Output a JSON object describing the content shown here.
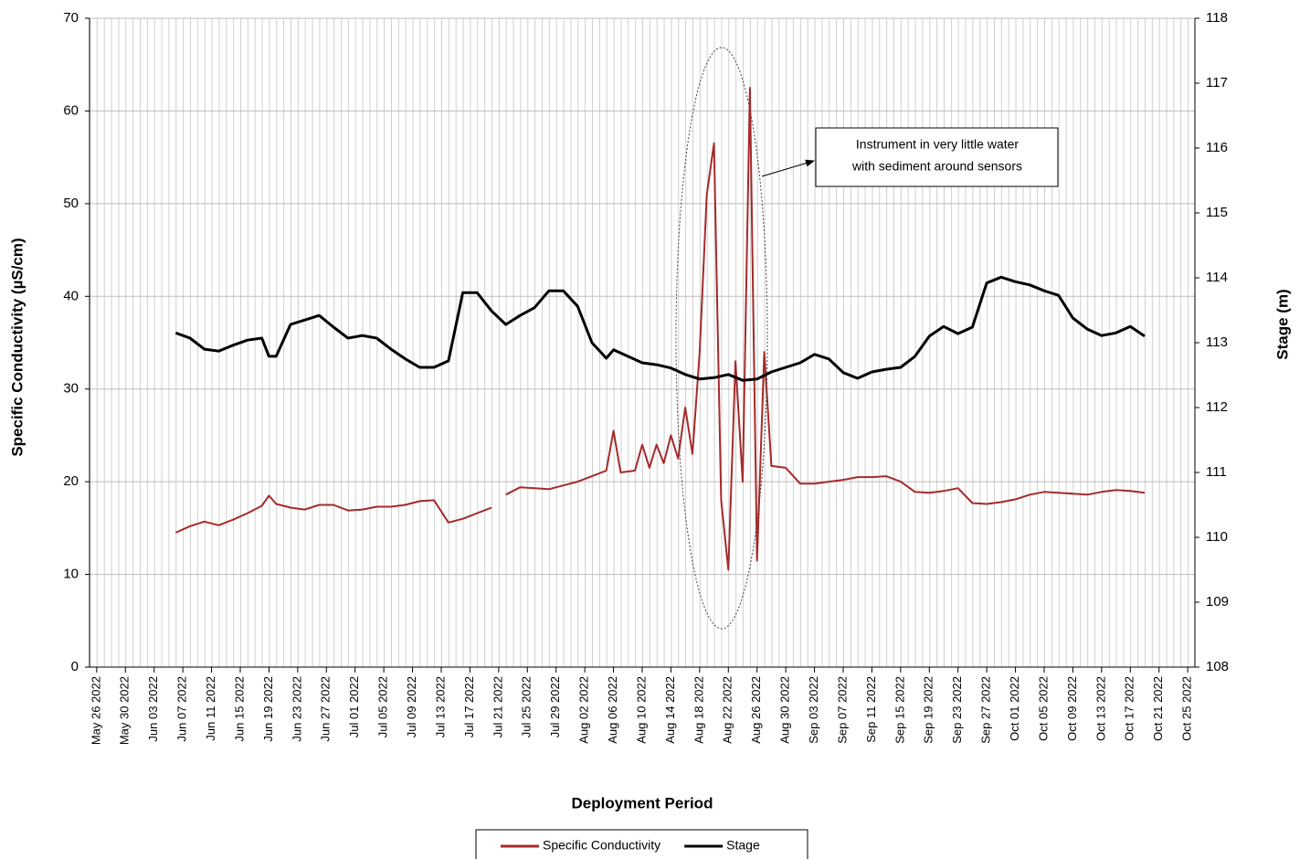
{
  "chart_data": {
    "type": "line",
    "x_label": "Deployment Period",
    "y_label": "Specific Conductivity  (µS/cm)",
    "y2_label": "Stage (m)",
    "xlim": [
      "2022-05-25",
      "2022-10-26"
    ],
    "xticks": [
      {
        "value": "2022-05-26",
        "label": "May 26 2022"
      },
      {
        "value": "2022-05-30",
        "label": "May 30 2022"
      },
      {
        "value": "2022-06-03",
        "label": "Jun 03 2022"
      },
      {
        "value": "2022-06-07",
        "label": "Jun 07 2022"
      },
      {
        "value": "2022-06-11",
        "label": "Jun 11 2022"
      },
      {
        "value": "2022-06-15",
        "label": "Jun 15 2022"
      },
      {
        "value": "2022-06-19",
        "label": "Jun 19 2022"
      },
      {
        "value": "2022-06-23",
        "label": "Jun 23 2022"
      },
      {
        "value": "2022-06-27",
        "label": "Jun 27 2022"
      },
      {
        "value": "2022-07-01",
        "label": "Jul 01 2022"
      },
      {
        "value": "2022-07-05",
        "label": "Jul 05 2022"
      },
      {
        "value": "2022-07-09",
        "label": "Jul 09 2022"
      },
      {
        "value": "2022-07-13",
        "label": "Jul 13 2022"
      },
      {
        "value": "2022-07-17",
        "label": "Jul 17 2022"
      },
      {
        "value": "2022-07-21",
        "label": "Jul 21 2022"
      },
      {
        "value": "2022-07-25",
        "label": "Jul 25 2022"
      },
      {
        "value": "2022-07-29",
        "label": "Jul 29 2022"
      },
      {
        "value": "2022-08-02",
        "label": "Aug 02 2022"
      },
      {
        "value": "2022-08-06",
        "label": "Aug 06 2022"
      },
      {
        "value": "2022-08-10",
        "label": "Aug 10 2022"
      },
      {
        "value": "2022-08-14",
        "label": "Aug 14 2022"
      },
      {
        "value": "2022-08-18",
        "label": "Aug 18 2022"
      },
      {
        "value": "2022-08-22",
        "label": "Aug 22 2022"
      },
      {
        "value": "2022-08-26",
        "label": "Aug 26 2022"
      },
      {
        "value": "2022-08-30",
        "label": "Aug 30 2022"
      },
      {
        "value": "2022-09-03",
        "label": "Sep 03 2022"
      },
      {
        "value": "2022-09-07",
        "label": "Sep 07 2022"
      },
      {
        "value": "2022-09-11",
        "label": "Sep 11 2022"
      },
      {
        "value": "2022-09-15",
        "label": "Sep 15 2022"
      },
      {
        "value": "2022-09-19",
        "label": "Sep 19 2022"
      },
      {
        "value": "2022-09-23",
        "label": "Sep 23 2022"
      },
      {
        "value": "2022-09-27",
        "label": "Sep 27 2022"
      },
      {
        "value": "2022-10-01",
        "label": "Oct 01 2022"
      },
      {
        "value": "2022-10-05",
        "label": "Oct 05 2022"
      },
      {
        "value": "2022-10-09",
        "label": "Oct 09 2022"
      },
      {
        "value": "2022-10-13",
        "label": "Oct 13 2022"
      },
      {
        "value": "2022-10-17",
        "label": "Oct 17 2022"
      },
      {
        "value": "2022-10-21",
        "label": "Oct 21 2022"
      },
      {
        "value": "2022-10-25",
        "label": "Oct 25 2022"
      }
    ],
    "ylim": [
      0,
      70
    ],
    "yticks": [
      0,
      10,
      20,
      30,
      40,
      50,
      60,
      70
    ],
    "y2lim": [
      108,
      118
    ],
    "y2ticks": [
      108,
      109,
      110,
      111,
      112,
      113,
      114,
      115,
      116,
      117,
      118
    ],
    "grid": true,
    "legend": "bottom",
    "series": [
      {
        "name": "Specific Conductivity",
        "color": "#a52a2a",
        "x": [
          "2022-06-06",
          "2022-06-08",
          "2022-06-10",
          "2022-06-12",
          "2022-06-14",
          "2022-06-16",
          "2022-06-18",
          "2022-06-19",
          "2022-06-20",
          "2022-06-22",
          "2022-06-24",
          "2022-06-26",
          "2022-06-28",
          "2022-06-30",
          "2022-07-02",
          "2022-07-04",
          "2022-07-06",
          "2022-07-08",
          "2022-07-10",
          "2022-07-12",
          "2022-07-14",
          "2022-07-16",
          "2022-07-18",
          "2022-07-20",
          "2022-07-21",
          "2022-07-22",
          "2022-07-24",
          "2022-07-26",
          "2022-07-28",
          "2022-07-30",
          "2022-08-01",
          "2022-08-03",
          "2022-08-05",
          "2022-08-06",
          "2022-08-07",
          "2022-08-09",
          "2022-08-10",
          "2022-08-11",
          "2022-08-12",
          "2022-08-13",
          "2022-08-14",
          "2022-08-15",
          "2022-08-16",
          "2022-08-17",
          "2022-08-18",
          "2022-08-19",
          "2022-08-20",
          "2022-08-21",
          "2022-08-22",
          "2022-08-23",
          "2022-08-24",
          "2022-08-25",
          "2022-08-26",
          "2022-08-27",
          "2022-08-28",
          "2022-08-30",
          "2022-09-01",
          "2022-09-03",
          "2022-09-05",
          "2022-09-07",
          "2022-09-09",
          "2022-09-11",
          "2022-09-13",
          "2022-09-15",
          "2022-09-17",
          "2022-09-19",
          "2022-09-21",
          "2022-09-23",
          "2022-09-25",
          "2022-09-27",
          "2022-09-29",
          "2022-10-01",
          "2022-10-03",
          "2022-10-05",
          "2022-10-07",
          "2022-10-09",
          "2022-10-11",
          "2022-10-13",
          "2022-10-15",
          "2022-10-17",
          "2022-10-19"
        ],
        "values": [
          14.5,
          15.2,
          15.7,
          15.3,
          15.9,
          16.6,
          17.4,
          18.5,
          17.6,
          17.2,
          17.0,
          17.5,
          17.5,
          16.9,
          17.0,
          17.3,
          17.3,
          17.5,
          17.9,
          18.0,
          15.6,
          16.0,
          16.6,
          17.2,
          null,
          18.6,
          19.4,
          19.3,
          19.2,
          19.6,
          20.0,
          20.6,
          21.2,
          25.5,
          21.0,
          21.2,
          24,
          21.5,
          24,
          22,
          25,
          22.5,
          28,
          23,
          34,
          51,
          56.5,
          18,
          10.5,
          33,
          20,
          62.5,
          11.5,
          34,
          21.7,
          21.5,
          19.8,
          19.8,
          20.0,
          20.2,
          20.5,
          20.5,
          20.6,
          20.0,
          18.9,
          18.8,
          19.0,
          19.3,
          17.7,
          17.6,
          17.8,
          18.1,
          18.6,
          18.9,
          18.8,
          18.7,
          18.6,
          18.9,
          19.1,
          19.0,
          18.8
        ]
      },
      {
        "name": "Stage",
        "color": "#000000",
        "axis": "y2",
        "x": [
          "2022-06-06",
          "2022-06-08",
          "2022-06-10",
          "2022-06-12",
          "2022-06-14",
          "2022-06-16",
          "2022-06-18",
          "2022-06-19",
          "2022-06-20",
          "2022-06-22",
          "2022-06-24",
          "2022-06-26",
          "2022-06-28",
          "2022-06-30",
          "2022-07-02",
          "2022-07-04",
          "2022-07-06",
          "2022-07-08",
          "2022-07-10",
          "2022-07-12",
          "2022-07-14",
          "2022-07-16",
          "2022-07-18",
          "2022-07-20",
          "2022-07-22",
          "2022-07-24",
          "2022-07-26",
          "2022-07-28",
          "2022-07-30",
          "2022-08-01",
          "2022-08-03",
          "2022-08-05",
          "2022-08-06",
          "2022-08-08",
          "2022-08-10",
          "2022-08-12",
          "2022-08-14",
          "2022-08-16",
          "2022-08-18",
          "2022-08-20",
          "2022-08-22",
          "2022-08-24",
          "2022-08-26",
          "2022-08-28",
          "2022-08-30",
          "2022-09-01",
          "2022-09-03",
          "2022-09-05",
          "2022-09-07",
          "2022-09-09",
          "2022-09-11",
          "2022-09-13",
          "2022-09-15",
          "2022-09-17",
          "2022-09-19",
          "2022-09-21",
          "2022-09-23",
          "2022-09-25",
          "2022-09-27",
          "2022-09-29",
          "2022-10-01",
          "2022-10-03",
          "2022-10-05",
          "2022-10-07",
          "2022-10-09",
          "2022-10-11",
          "2022-10-13",
          "2022-10-15",
          "2022-10-17",
          "2022-10-19"
        ],
        "values": [
          113.15,
          113.07,
          112.9,
          112.87,
          112.96,
          113.04,
          113.07,
          112.79,
          112.79,
          113.28,
          113.35,
          113.42,
          113.24,
          113.07,
          113.11,
          113.07,
          112.9,
          112.75,
          112.62,
          112.62,
          112.72,
          113.77,
          113.77,
          113.49,
          113.28,
          113.42,
          113.54,
          113.8,
          113.8,
          113.56,
          113.0,
          112.76,
          112.89,
          112.79,
          112.69,
          112.66,
          112.61,
          112.51,
          112.44,
          112.46,
          112.51,
          112.42,
          112.44,
          112.55,
          112.62,
          112.69,
          112.82,
          112.75,
          112.54,
          112.45,
          112.55,
          112.59,
          112.62,
          112.79,
          113.1,
          113.25,
          113.14,
          113.24,
          113.92,
          114.01,
          113.94,
          113.89,
          113.8,
          113.73,
          113.38,
          113.21,
          113.11,
          113.15,
          113.25,
          113.1
        ]
      }
    ],
    "annotation": {
      "lines": [
        "Instrument in very little water",
        "with sediment around sensors"
      ]
    }
  }
}
